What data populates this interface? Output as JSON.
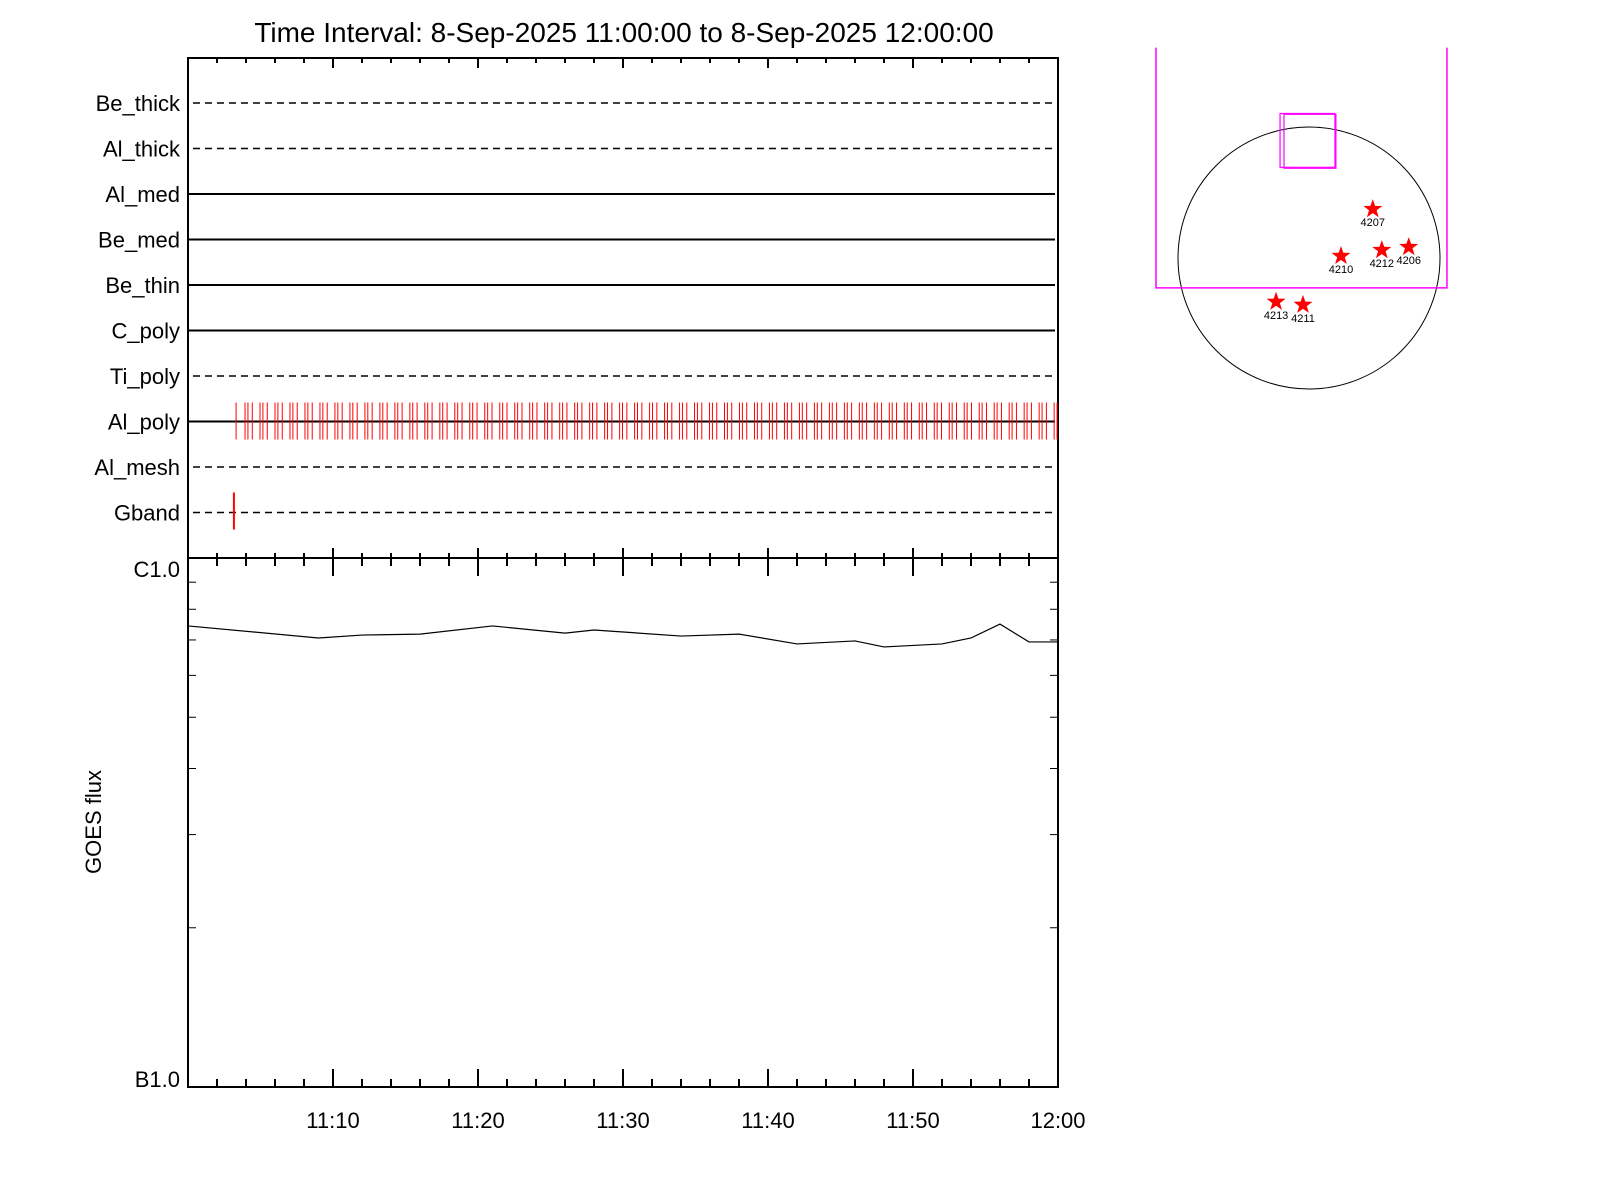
{
  "chart_data": [
    {
      "type": "timeline",
      "title": "Time Interval:  8-Sep-2025 11:00:00 to  8-Sep-2025 12:00:00",
      "xlim": [
        "11:00",
        "12:00"
      ],
      "rows": [
        {
          "name": "Be_thick",
          "style": "dashed",
          "exposures": []
        },
        {
          "name": "Al_thick",
          "style": "dashed",
          "exposures": []
        },
        {
          "name": "Al_med",
          "style": "solid",
          "exposures": []
        },
        {
          "name": "Be_med",
          "style": "solid",
          "exposures": []
        },
        {
          "name": "Be_thin",
          "style": "solid",
          "exposures": []
        },
        {
          "name": "C_poly",
          "style": "solid",
          "exposures": []
        },
        {
          "name": "Ti_poly",
          "style": "dashed",
          "exposures": []
        },
        {
          "name": "Al_poly",
          "style": "solid",
          "exposures": [
            "11:03:19",
            "11:03:56",
            "11:04:08",
            "11:04:26",
            "11:04:58",
            "11:05:10",
            "11:05:28",
            "11:06:00",
            "11:06:12",
            "11:06:30",
            "11:07:02",
            "11:07:14",
            "11:07:32",
            "11:08:04",
            "11:08:16",
            "11:08:34",
            "11:09:06",
            "11:09:18",
            "11:09:36",
            "11:10:08",
            "11:10:20",
            "11:10:38",
            "11:11:10",
            "11:11:22",
            "11:11:40",
            "11:12:12",
            "11:12:24",
            "11:12:42",
            "11:13:14",
            "11:13:26",
            "11:13:44",
            "11:14:16",
            "11:14:28",
            "11:14:46",
            "11:15:18",
            "11:15:30",
            "11:15:48",
            "11:16:20",
            "11:16:32",
            "11:16:50",
            "11:17:22",
            "11:17:34",
            "11:17:52",
            "11:18:24",
            "11:18:36",
            "11:18:54",
            "11:19:26",
            "11:19:38",
            "11:19:56",
            "11:20:28",
            "11:20:40",
            "11:20:58",
            "11:21:30",
            "11:21:42",
            "11:22:00",
            "11:22:32",
            "11:22:44",
            "11:23:02",
            "11:23:34",
            "11:23:46",
            "11:24:04",
            "11:24:36",
            "11:24:48",
            "11:25:06",
            "11:25:38",
            "11:25:50",
            "11:26:08",
            "11:26:40",
            "11:26:52",
            "11:27:10",
            "11:27:42",
            "11:27:54",
            "11:28:12",
            "11:28:44",
            "11:28:56",
            "11:29:14",
            "11:29:46",
            "11:29:58",
            "11:30:16",
            "11:30:48",
            "11:31:00",
            "11:31:18",
            "11:31:50",
            "11:32:02",
            "11:32:20",
            "11:32:52",
            "11:33:04",
            "11:33:22",
            "11:33:54",
            "11:34:06",
            "11:34:24",
            "11:34:56",
            "11:35:08",
            "11:35:26",
            "11:35:58",
            "11:36:10",
            "11:36:28",
            "11:37:00",
            "11:37:12",
            "11:37:30",
            "11:38:02",
            "11:38:14",
            "11:38:32",
            "11:39:04",
            "11:39:16",
            "11:39:34",
            "11:40:06",
            "11:40:18",
            "11:40:36",
            "11:41:08",
            "11:41:20",
            "11:41:38",
            "11:42:10",
            "11:42:22",
            "11:42:40",
            "11:43:12",
            "11:43:24",
            "11:43:42",
            "11:44:14",
            "11:44:26",
            "11:44:44",
            "11:45:16",
            "11:45:28",
            "11:45:46",
            "11:46:18",
            "11:46:30",
            "11:46:48",
            "11:47:20",
            "11:47:32",
            "11:47:50",
            "11:48:22",
            "11:48:34",
            "11:48:52",
            "11:49:24",
            "11:49:36",
            "11:49:54",
            "11:50:26",
            "11:50:38",
            "11:50:56",
            "11:51:28",
            "11:51:40",
            "11:51:58",
            "11:52:30",
            "11:52:42",
            "11:53:00",
            "11:53:32",
            "11:53:44",
            "11:54:02",
            "11:54:34",
            "11:54:46",
            "11:55:04",
            "11:55:36",
            "11:55:48",
            "11:56:06",
            "11:56:38",
            "11:56:50",
            "11:57:08",
            "11:57:40",
            "11:57:52",
            "11:58:10",
            "11:58:42",
            "11:58:54",
            "11:59:12",
            "11:59:44",
            "11:59:56"
          ]
        },
        {
          "name": "Al_mesh",
          "style": "dashed",
          "exposures": []
        },
        {
          "name": "Gband",
          "style": "dashed",
          "exposures": [
            "11:03:10"
          ]
        }
      ],
      "exposure_color": "#ff0000"
    },
    {
      "type": "line",
      "ylabel": "GOES flux",
      "yscale": "log",
      "ylim": [
        1e-07,
        1e-06
      ],
      "ytick_labels": [
        "B1.0",
        "C1.0"
      ],
      "xlim": [
        "11:00",
        "12:00"
      ],
      "xtick_labels": [
        "11:10",
        "11:20",
        "11:30",
        "11:40",
        "11:50",
        "12:00"
      ],
      "series": [
        {
          "color": "#000000",
          "x": [
            "11:00",
            "11:09",
            "11:12",
            "11:16",
            "11:21",
            "11:26",
            "11:28",
            "11:34",
            "11:38",
            "11:42",
            "11:46",
            "11:48",
            "11:52",
            "11:54",
            "11:56",
            "11:58",
            "12:00"
          ],
          "y": [
            7.44e-07,
            7.06e-07,
            7.15e-07,
            7.18e-07,
            7.44e-07,
            7.21e-07,
            7.31e-07,
            7.12e-07,
            7.18e-07,
            6.88e-07,
            6.97e-07,
            6.79e-07,
            6.88e-07,
            7.06e-07,
            7.5e-07,
            6.94e-07,
            6.94e-07
          ]
        }
      ]
    },
    {
      "type": "scatter",
      "units": "arcsec",
      "solar_radius": 959,
      "disk_color": "#000000",
      "fov_color": "#ff00ff",
      "fov_large": {
        "x": [
          -1120,
          1010
        ],
        "y": [
          -219,
          1540
        ]
      },
      "fov_small": [
        {
          "x": [
            -212,
            190
          ],
          "y": [
            664,
            1058
          ]
        },
        {
          "x": [
            -183,
            197
          ],
          "y": [
            657,
            1052
          ]
        }
      ],
      "marker_color": "#ff0000",
      "active_regions": [
        {
          "label": "4207",
          "x": 467,
          "y": 358
        },
        {
          "label": "4210",
          "x": 234,
          "y": 15
        },
        {
          "label": "4212",
          "x": 533,
          "y": 58
        },
        {
          "label": "4206",
          "x": 730,
          "y": 80
        },
        {
          "label": "4213",
          "x": -241,
          "y": -321
        },
        {
          "label": "4211",
          "x": -44,
          "y": -343
        }
      ]
    }
  ]
}
